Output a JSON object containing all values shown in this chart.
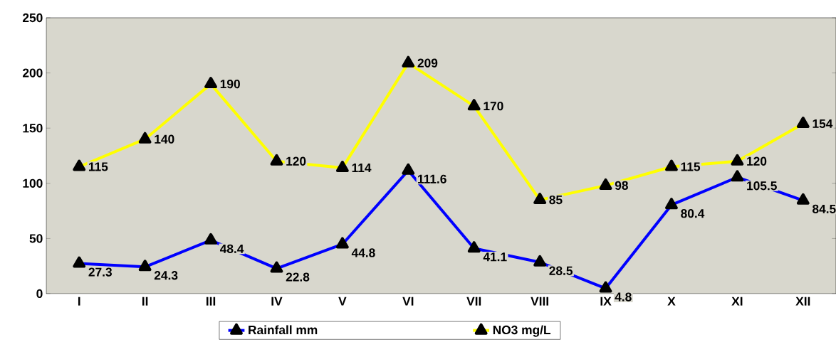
{
  "chart_data": {
    "type": "line",
    "categories": [
      "I",
      "II",
      "III",
      "IV",
      "V",
      "VI",
      "VII",
      "VIII",
      "IX",
      "X",
      "XI",
      "XII"
    ],
    "series": [
      {
        "name": "Rainfall mm",
        "color": "#0000ff",
        "values": [
          27.3,
          24.3,
          48.4,
          22.8,
          44.8,
          111.6,
          41.1,
          28.5,
          4.8,
          80.4,
          105.5,
          84.5
        ]
      },
      {
        "name": "NO3 mg/L",
        "color": "#ffff00",
        "values": [
          115,
          140,
          190,
          120,
          114,
          209,
          170,
          85,
          98,
          115,
          120,
          154
        ]
      }
    ],
    "ylim": [
      0,
      250
    ],
    "yticks": [
      0,
      50,
      100,
      150,
      200,
      250
    ],
    "data_labels": true,
    "marker": "triangle",
    "line_style": "solid",
    "legend": "bottom",
    "grid": false
  }
}
